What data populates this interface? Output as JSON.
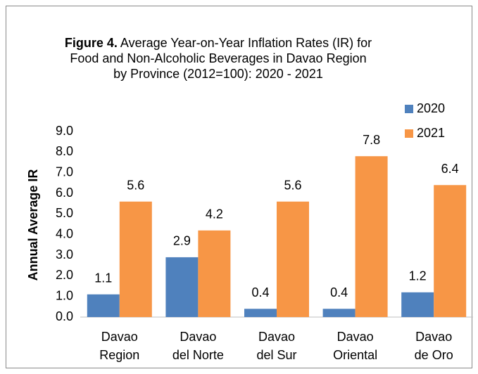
{
  "chart_data": {
    "type": "bar",
    "figure_label": "Figure 4.",
    "title": "Average Year-on-Year Inflation Rates (IR) for Food and Non-Alcoholic Beverages in Davao Region by Province (2012=100): 2020 - 2021",
    "y_label": "Annual Average IR",
    "categories": [
      "Davao Region",
      "Davao del Norte",
      "Davao del Sur",
      "Davao Oriental",
      "Davao de Oro"
    ],
    "series": [
      {
        "name": "2020",
        "color": "#4f81bd",
        "values": [
          1.1,
          2.9,
          0.4,
          0.4,
          1.2
        ]
      },
      {
        "name": "2021",
        "color": "#f79646",
        "values": [
          5.6,
          4.2,
          5.6,
          7.8,
          6.4
        ]
      }
    ],
    "ylim": [
      0,
      9
    ],
    "yticks": [
      {
        "value": 0,
        "label": "0.0"
      },
      {
        "value": 1,
        "label": "1.0"
      },
      {
        "value": 2,
        "label": "2.0"
      },
      {
        "value": 3,
        "label": "3.0"
      },
      {
        "value": 4,
        "label": "4.0"
      },
      {
        "value": 5,
        "label": "5.0"
      },
      {
        "value": 6,
        "label": "6.0"
      },
      {
        "value": 7,
        "label": "7.0"
      },
      {
        "value": 8,
        "label": "8.0"
      },
      {
        "value": 9,
        "label": "9.0"
      }
    ],
    "grid": false,
    "legend": "top-right"
  }
}
